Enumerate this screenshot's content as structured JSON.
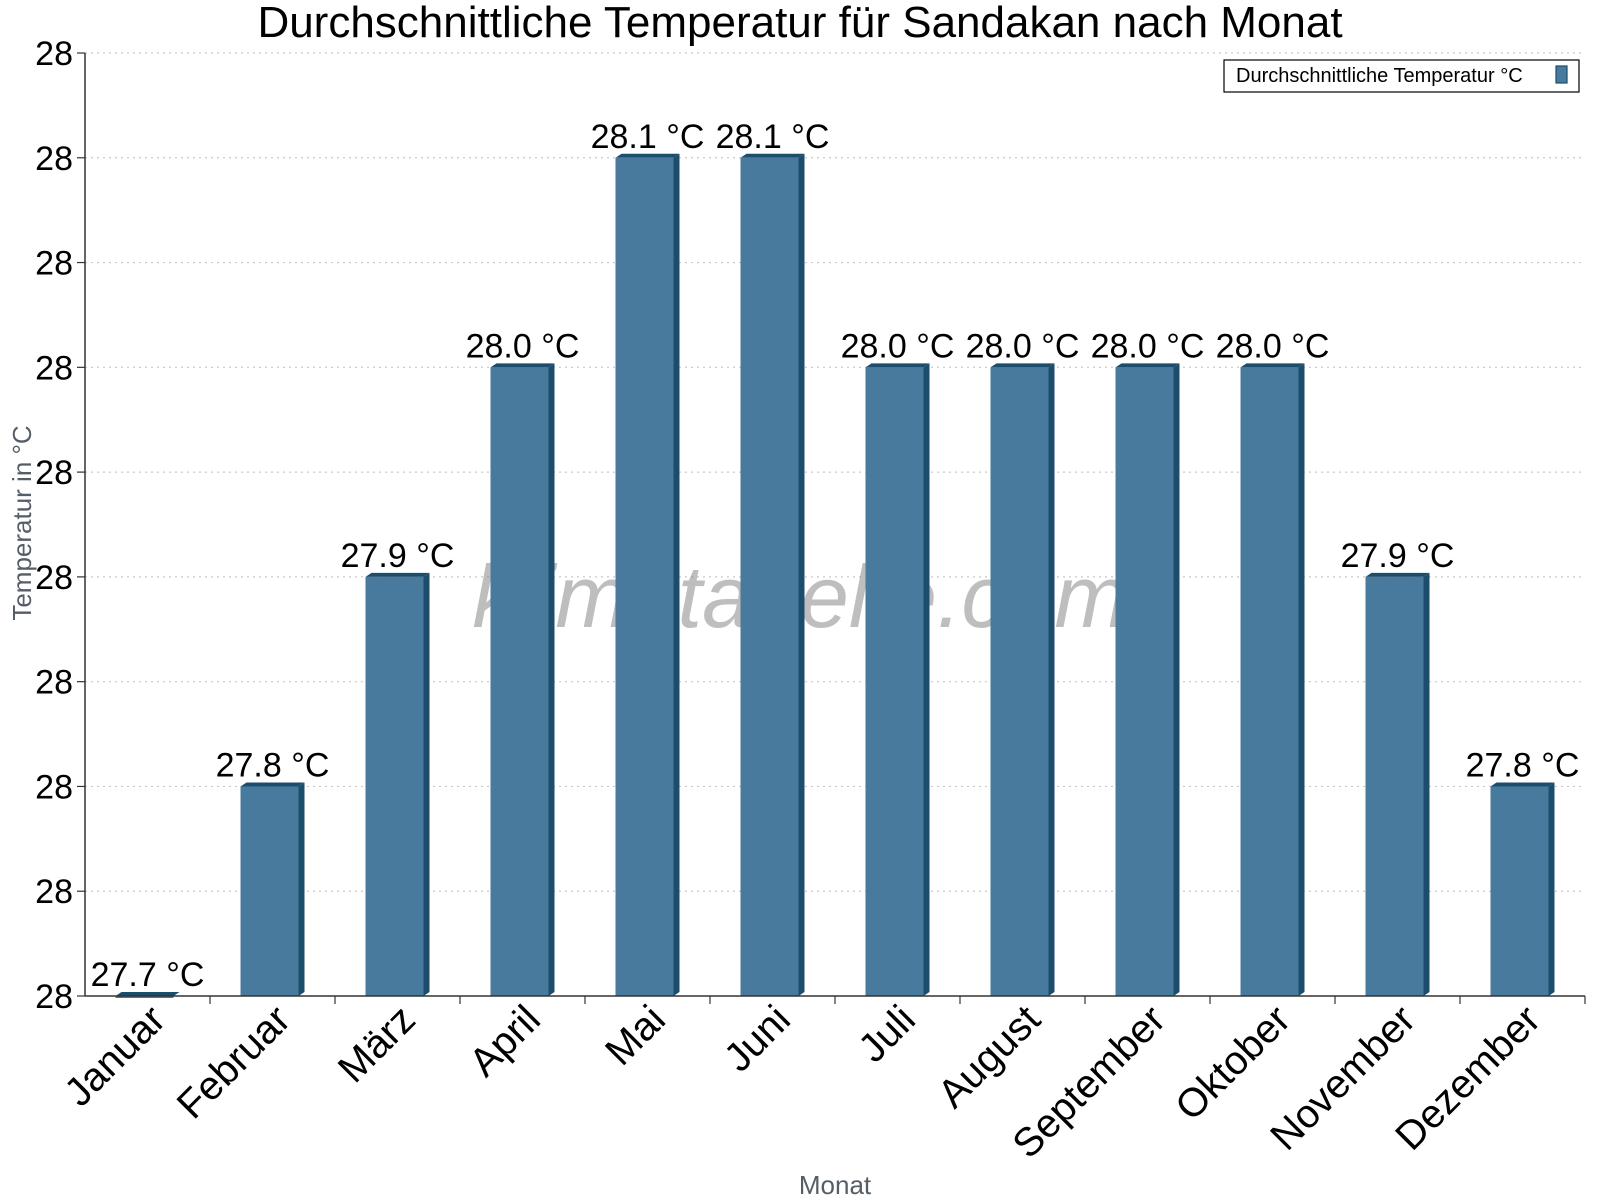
{
  "chart_data": {
    "type": "bar",
    "title": "Durchschnittliche Temperatur für Sandakan nach Monat",
    "xlabel": "Monat",
    "ylabel": "Temperatur in °C",
    "categories": [
      "Januar",
      "Februar",
      "März",
      "April",
      "Mai",
      "Juni",
      "Juli",
      "August",
      "September",
      "Oktober",
      "November",
      "Dezember"
    ],
    "series": [
      {
        "name": "Durchschnittliche Temperatur °C",
        "values": [
          27.7,
          27.8,
          27.9,
          28.0,
          28.1,
          28.1,
          28.0,
          28.0,
          28.0,
          28.0,
          27.9,
          27.8
        ],
        "labels": [
          "27.7 °C",
          "27.8 °C",
          "27.9 °C",
          "28.0 °C",
          "28.1 °C",
          "28.1 °C",
          "28.0 °C",
          "28.0 °C",
          "28.0 °C",
          "28.0 °C",
          "27.9 °C",
          "27.8 °C"
        ]
      }
    ],
    "ylim": [
      27.7,
      28.15
    ],
    "yticks": [
      27.7,
      27.75,
      27.8,
      27.85,
      27.9,
      27.95,
      28.0,
      28.05,
      28.1,
      28.15
    ],
    "ytick_labels": [
      "28",
      "28",
      "28",
      "28",
      "28",
      "28",
      "28",
      "28",
      "28",
      "28"
    ],
    "grid": true,
    "legend_position": "top-right",
    "watermark": "klimatabelle.com",
    "colors": {
      "bar": "#477a9c",
      "bar_side": "#1d4d6c",
      "grid": "#c8c8c8"
    }
  }
}
